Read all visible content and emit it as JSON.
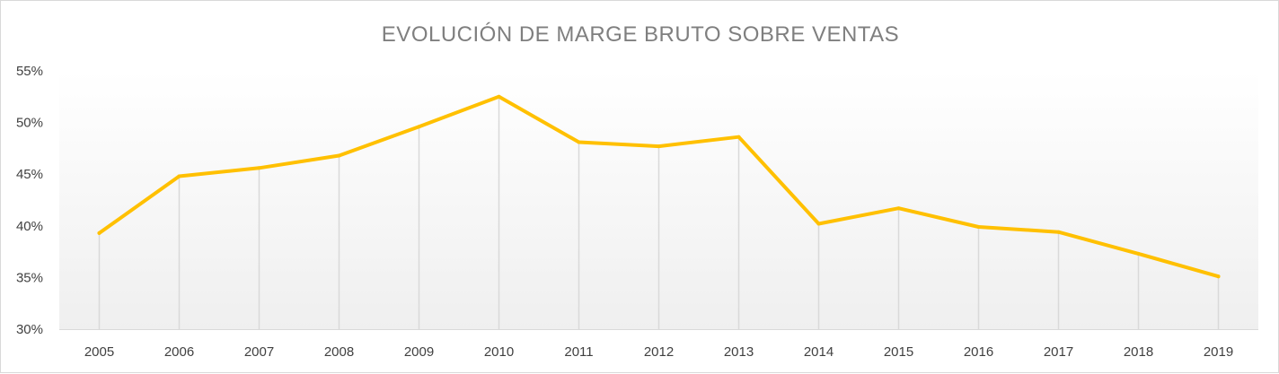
{
  "chart_data": {
    "type": "line",
    "title": "EVOLUCIÓN  DE MARGE BRUTO SOBRE VENTAS",
    "xlabel": "",
    "ylabel": "",
    "categories": [
      "2005",
      "2006",
      "2007",
      "2008",
      "2009",
      "2010",
      "2011",
      "2012",
      "2013",
      "2014",
      "2015",
      "2016",
      "2017",
      "2018",
      "2019"
    ],
    "series": [
      {
        "values": [
          39.3,
          44.8,
          45.6,
          46.8,
          49.6,
          52.5,
          48.1,
          47.7,
          48.6,
          40.2,
          41.7,
          39.9,
          39.4,
          37.3,
          35.1
        ]
      }
    ],
    "ylim": [
      30,
      55
    ],
    "ytick_step": 5,
    "ytick_suffix": "%",
    "grid": "vertical drop lines at each category",
    "legend": "none",
    "colors": {
      "line": "#FFC000",
      "droplines": "#d9d9d9",
      "axis": "#d9d9d9",
      "plot_bg_top": "#ffffff",
      "plot_bg_bottom": "#efefef"
    }
  }
}
